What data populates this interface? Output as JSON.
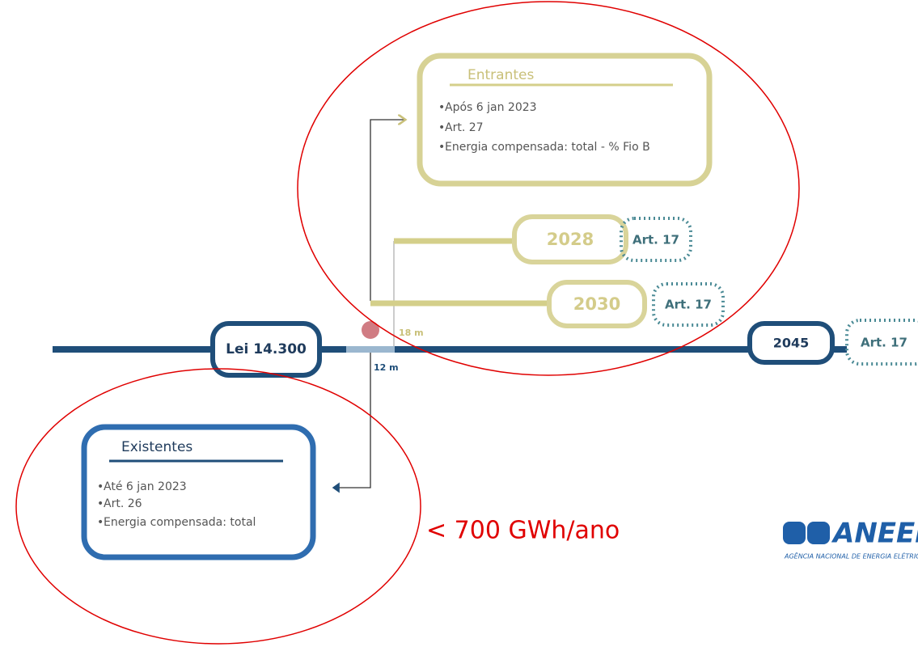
{
  "entrantes": {
    "title": "Entrantes",
    "items": [
      "Após 6 jan 2023",
      "Art. 27",
      "Energia compensada:  total - % Fio B"
    ]
  },
  "existentes": {
    "title": "Existentes",
    "items": [
      "Até 6 jan 2023",
      "Art. 26",
      "Energia compensada: total"
    ]
  },
  "timeline": {
    "start": "Lei 14.300",
    "marks": [
      {
        "year": "2028",
        "article": "Art. 17"
      },
      {
        "year": "2030",
        "article": "Art. 17"
      },
      {
        "year": "2045",
        "article": "Art. 17"
      }
    ],
    "offsets": [
      "18 m",
      "12 m"
    ]
  },
  "annotation": "< 700 GWh/ano",
  "logo": {
    "name": "ANEEL",
    "subtitle": "AGÊNCIA NACIONAL DE ENERGIA ELÉTRICA"
  }
}
